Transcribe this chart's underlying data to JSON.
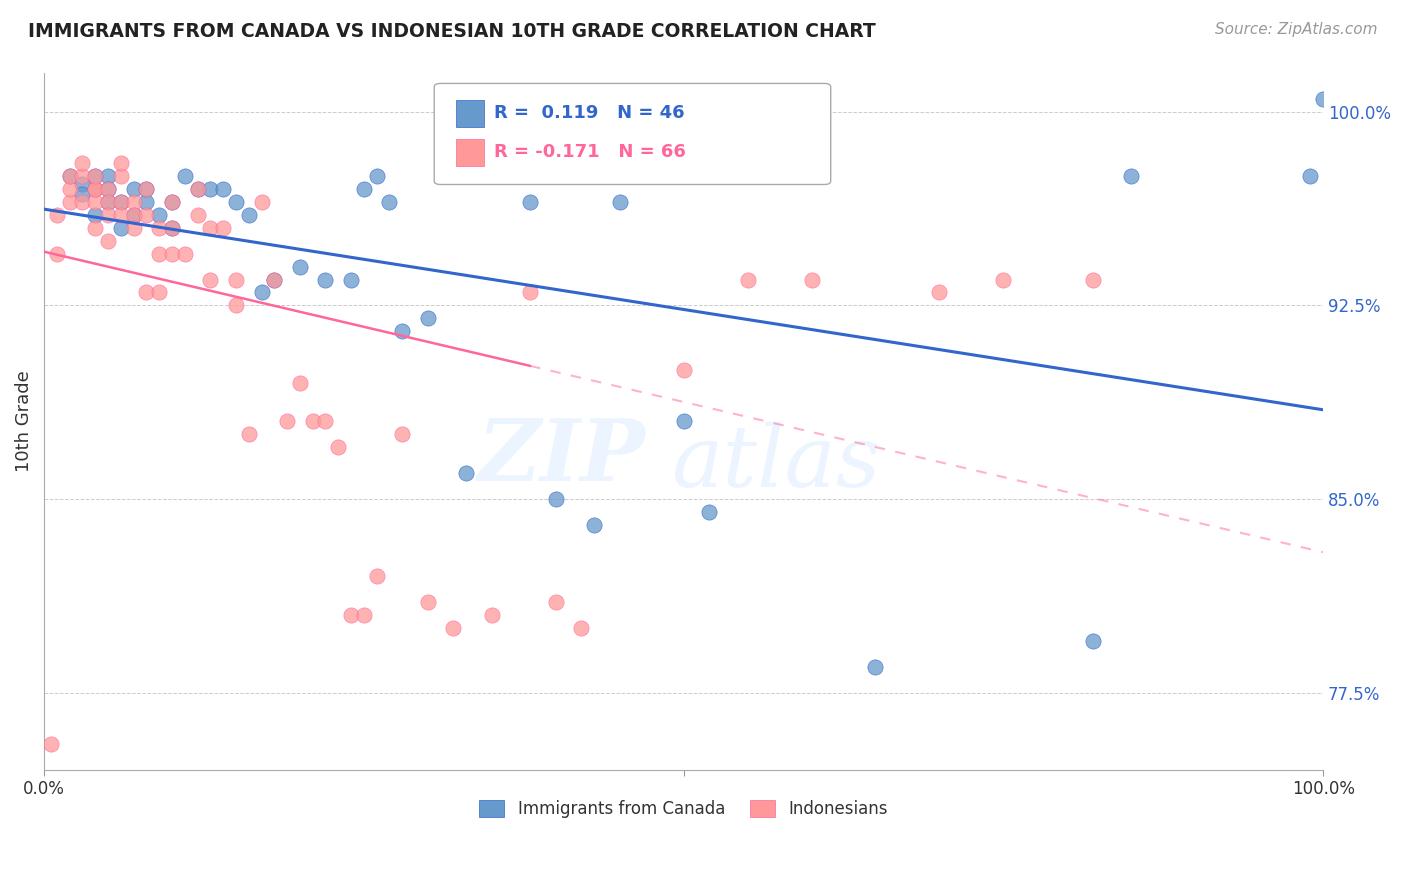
{
  "title": "IMMIGRANTS FROM CANADA VS INDONESIAN 10TH GRADE CORRELATION CHART",
  "source": "Source: ZipAtlas.com",
  "ylabel": "10th Grade",
  "xlim": [
    0.0,
    1.0
  ],
  "ylim": [
    0.745,
    1.015
  ],
  "yticks": [
    0.775,
    0.85,
    0.925,
    1.0
  ],
  "ytick_labels": [
    "77.5%",
    "85.0%",
    "92.5%",
    "100.0%"
  ],
  "legend_blue_label": "Immigrants from Canada",
  "legend_pink_label": "Indonesians",
  "R_blue": 0.119,
  "N_blue": 46,
  "R_pink": -0.171,
  "N_pink": 66,
  "blue_color": "#6699CC",
  "pink_color": "#FF9999",
  "blue_line_color": "#3366CC",
  "pink_line_color": "#FF6699",
  "watermark_zip": "ZIP",
  "watermark_atlas": "atlas",
  "blue_scatter_x": [
    0.02,
    0.03,
    0.03,
    0.04,
    0.04,
    0.04,
    0.05,
    0.05,
    0.05,
    0.06,
    0.06,
    0.07,
    0.07,
    0.08,
    0.08,
    0.09,
    0.1,
    0.1,
    0.11,
    0.12,
    0.13,
    0.14,
    0.15,
    0.16,
    0.17,
    0.18,
    0.2,
    0.22,
    0.24,
    0.25,
    0.26,
    0.27,
    0.28,
    0.3,
    0.33,
    0.38,
    0.4,
    0.43,
    0.45,
    0.5,
    0.52,
    0.65,
    0.82,
    0.85,
    0.99,
    1.0
  ],
  "blue_scatter_y": [
    0.975,
    0.972,
    0.968,
    0.97,
    0.975,
    0.96,
    0.965,
    0.975,
    0.97,
    0.965,
    0.955,
    0.96,
    0.97,
    0.965,
    0.97,
    0.96,
    0.955,
    0.965,
    0.975,
    0.97,
    0.97,
    0.97,
    0.965,
    0.96,
    0.93,
    0.935,
    0.94,
    0.935,
    0.935,
    0.97,
    0.975,
    0.965,
    0.915,
    0.92,
    0.86,
    0.965,
    0.85,
    0.84,
    0.965,
    0.88,
    0.845,
    0.785,
    0.795,
    0.975,
    0.975,
    1.005
  ],
  "pink_scatter_x": [
    0.005,
    0.01,
    0.01,
    0.02,
    0.02,
    0.02,
    0.03,
    0.03,
    0.03,
    0.04,
    0.04,
    0.04,
    0.04,
    0.04,
    0.05,
    0.05,
    0.05,
    0.05,
    0.06,
    0.06,
    0.06,
    0.06,
    0.07,
    0.07,
    0.07,
    0.08,
    0.08,
    0.08,
    0.09,
    0.09,
    0.09,
    0.1,
    0.1,
    0.1,
    0.11,
    0.12,
    0.12,
    0.13,
    0.13,
    0.14,
    0.15,
    0.15,
    0.16,
    0.17,
    0.18,
    0.19,
    0.2,
    0.21,
    0.22,
    0.23,
    0.24,
    0.25,
    0.26,
    0.28,
    0.3,
    0.32,
    0.35,
    0.38,
    0.4,
    0.42,
    0.5,
    0.55,
    0.6,
    0.7,
    0.75,
    0.82
  ],
  "pink_scatter_y": [
    0.755,
    0.96,
    0.945,
    0.965,
    0.97,
    0.975,
    0.975,
    0.98,
    0.965,
    0.97,
    0.955,
    0.965,
    0.97,
    0.975,
    0.97,
    0.965,
    0.95,
    0.96,
    0.975,
    0.98,
    0.965,
    0.96,
    0.965,
    0.96,
    0.955,
    0.97,
    0.96,
    0.93,
    0.955,
    0.945,
    0.93,
    0.955,
    0.945,
    0.965,
    0.945,
    0.97,
    0.96,
    0.955,
    0.935,
    0.955,
    0.935,
    0.925,
    0.875,
    0.965,
    0.935,
    0.88,
    0.895,
    0.88,
    0.88,
    0.87,
    0.805,
    0.805,
    0.82,
    0.875,
    0.81,
    0.8,
    0.805,
    0.93,
    0.81,
    0.8,
    0.9,
    0.935,
    0.935,
    0.93,
    0.935,
    0.935
  ]
}
